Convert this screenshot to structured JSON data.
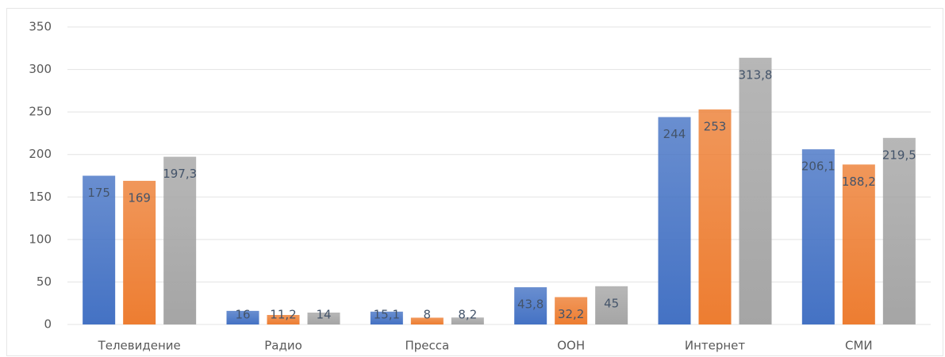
{
  "chart_data": {
    "type": "bar",
    "categories": [
      "Телевидение",
      "Радио",
      "Пресса",
      "ООН",
      "Интернет",
      "СМИ"
    ],
    "series": [
      {
        "color": "#4472c4",
        "values": [
          175,
          16,
          15.1,
          43.8,
          244,
          206.1
        ],
        "value_labels": [
          "175",
          "16",
          "15,1",
          "43,8",
          "244",
          "206,1"
        ]
      },
      {
        "color": "#ed7d31",
        "values": [
          169,
          11.2,
          8,
          32.2,
          253,
          188.2
        ],
        "value_labels": [
          "169",
          "11,2",
          "8",
          "32,2",
          "253",
          "188,2"
        ]
      },
      {
        "color": "#a5a5a5",
        "values": [
          197.3,
          14,
          8.2,
          45,
          313.8,
          219.5
        ],
        "value_labels": [
          "197,3",
          "14",
          "8,2",
          "45",
          "313,8",
          "219,5"
        ]
      }
    ],
    "ylim": [
      0,
      350
    ],
    "yticks": [
      0,
      50,
      100,
      150,
      200,
      250,
      300,
      350
    ],
    "grid": true
  }
}
